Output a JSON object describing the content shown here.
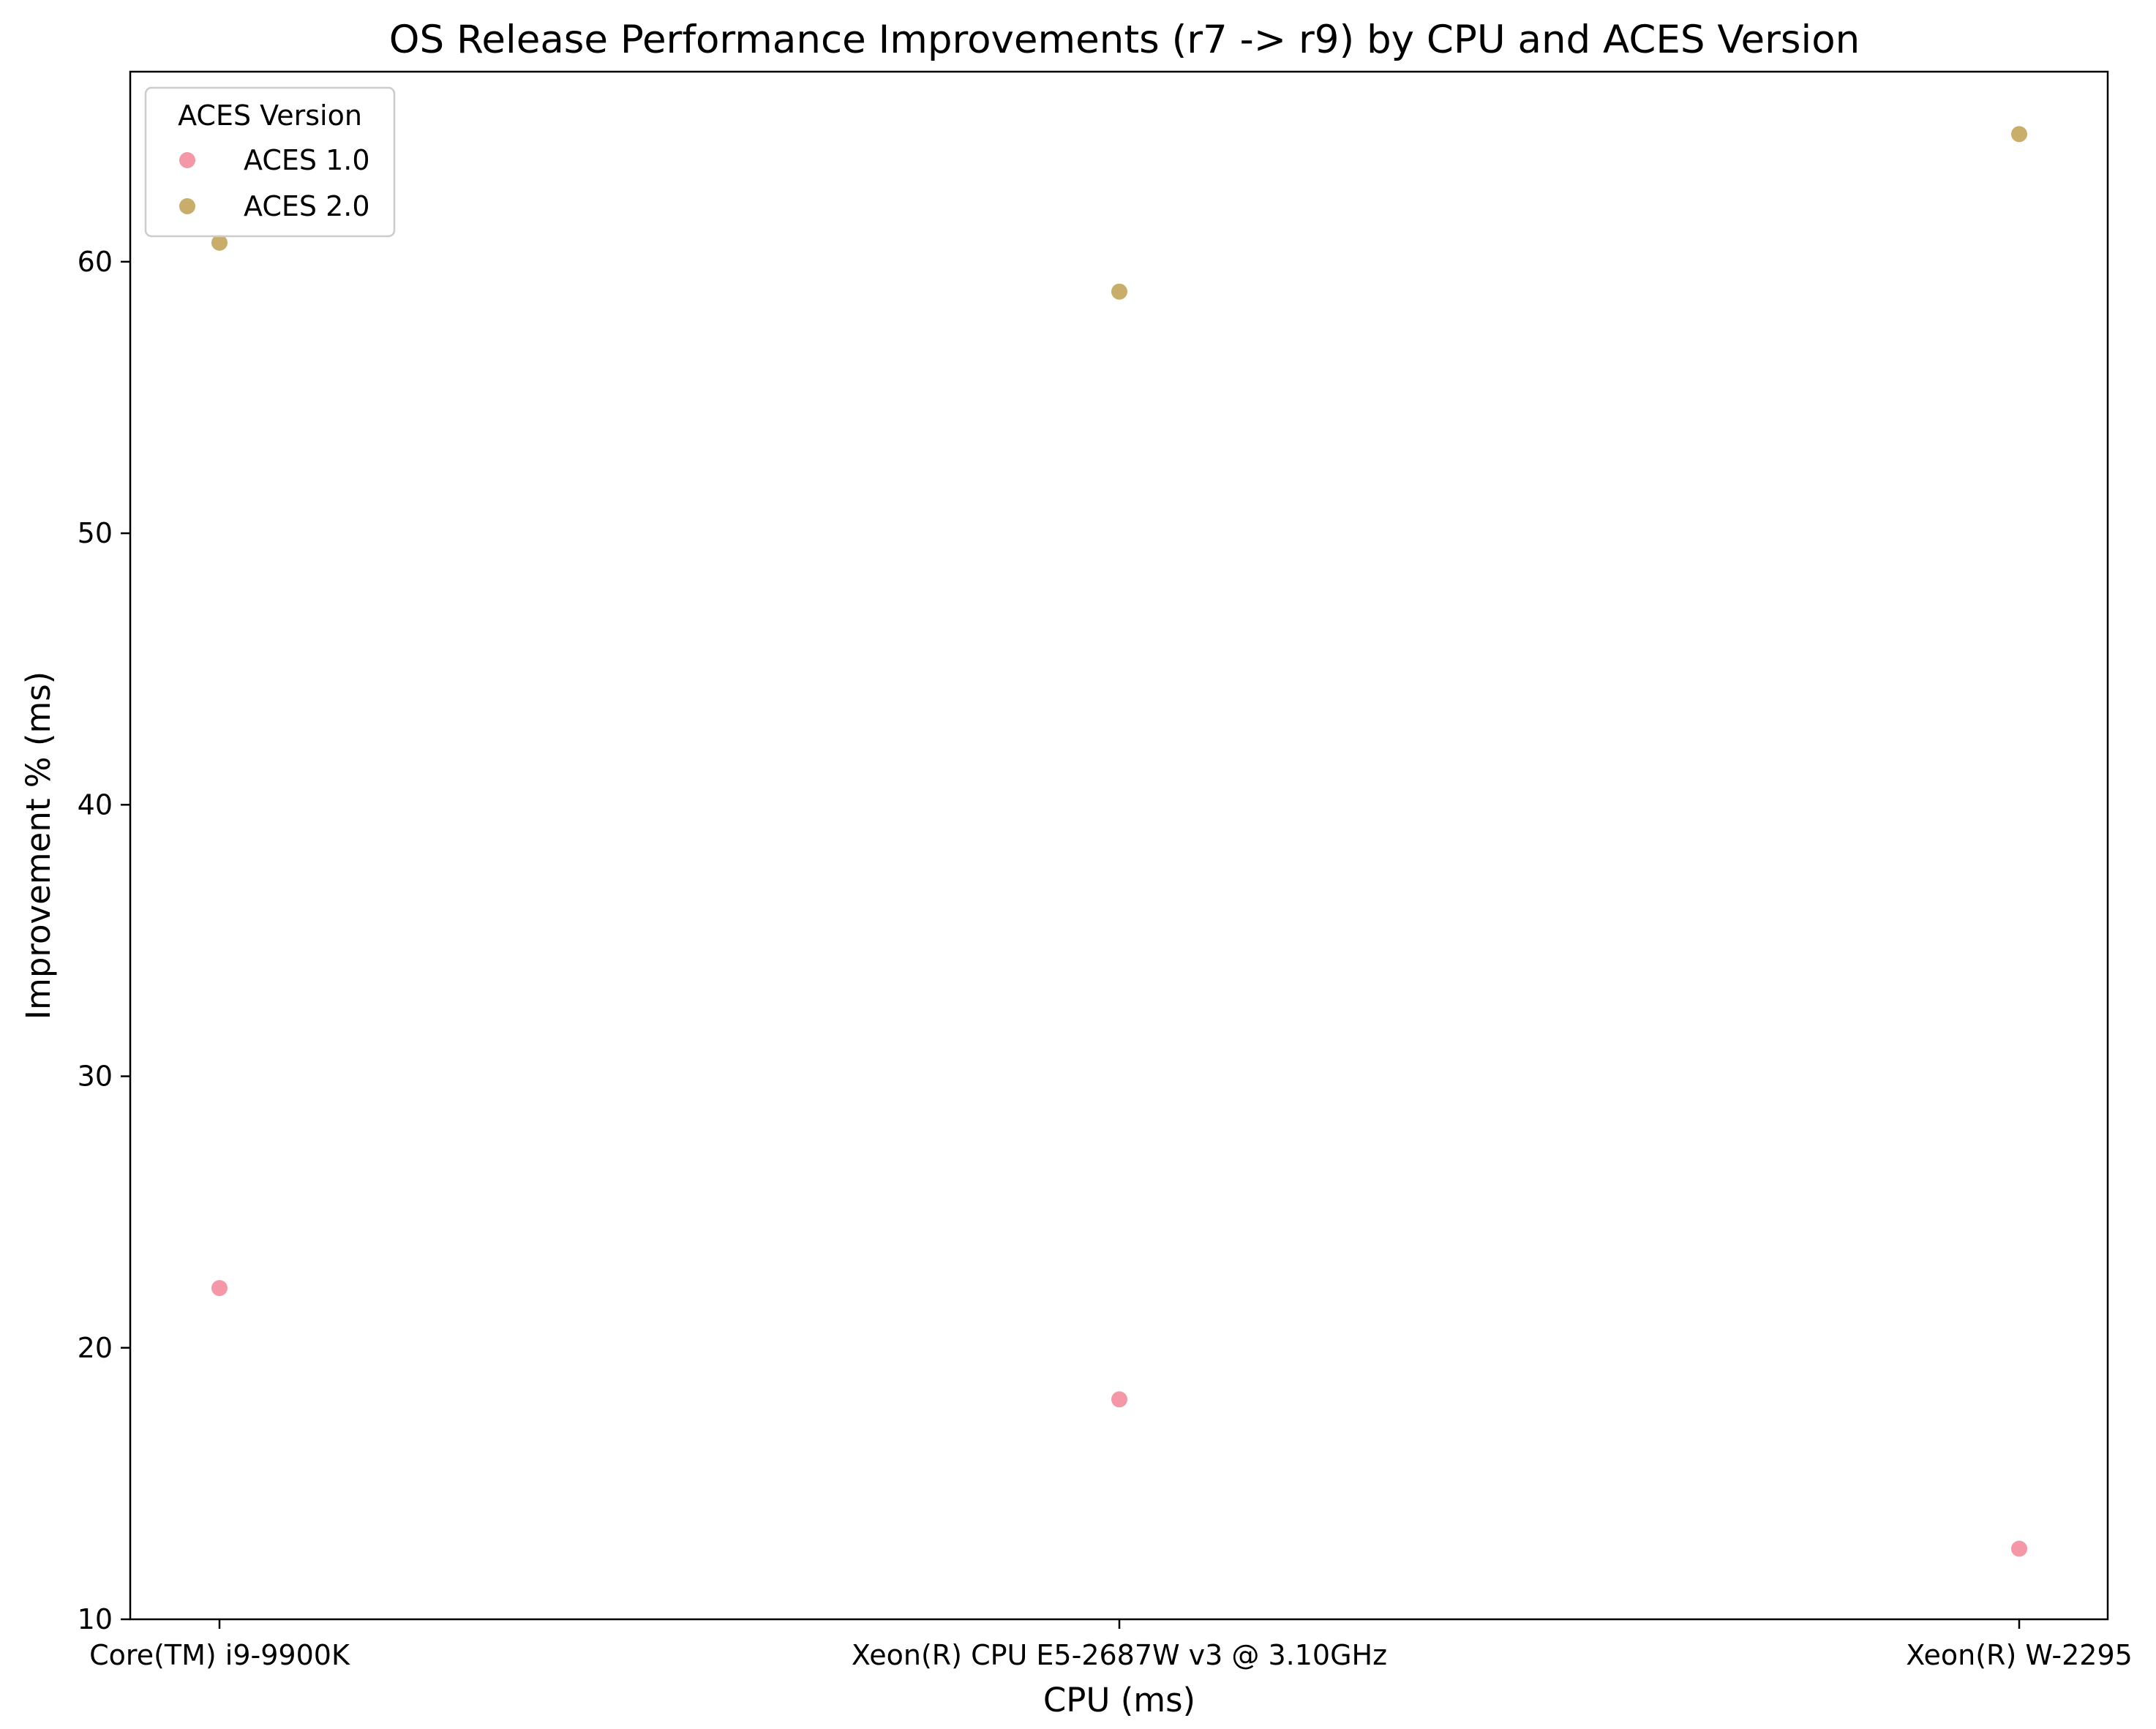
{
  "chart_data": {
    "type": "scatter",
    "title": "OS Release Performance Improvements (r7 -> r9) by CPU and ACES Version",
    "xlabel": "CPU (ms)",
    "ylabel": "Improvement % (ms)",
    "categories": [
      "Core(TM) i9-9900K",
      "Xeon(R) CPU E5-2687W v3 @ 3.10GHz",
      "Xeon(R) W-2295"
    ],
    "ylim": [
      10,
      67
    ],
    "yticks": [
      "10",
      "20",
      "30",
      "40",
      "50",
      "60"
    ],
    "grid": false,
    "legend": {
      "title": "ACES Version",
      "placement": "upper-left"
    },
    "series": [
      {
        "name": "ACES 1.0",
        "color": "#f497a6",
        "values": [
          22.2,
          18.1,
          12.6
        ]
      },
      {
        "name": "ACES 2.0",
        "color": "#c8ae6a",
        "values": [
          60.7,
          58.9,
          64.7
        ]
      }
    ]
  }
}
